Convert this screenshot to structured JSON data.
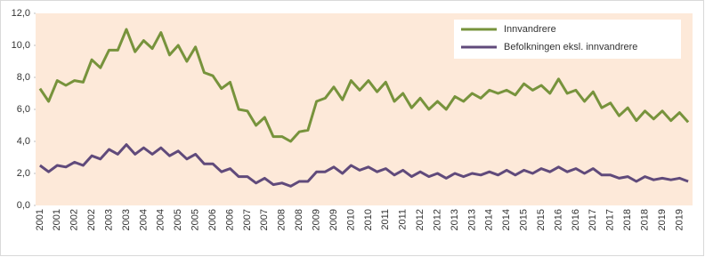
{
  "chart_data": {
    "type": "line",
    "categories": [
      "2001",
      null,
      "2001",
      null,
      "2002",
      null,
      "2002",
      null,
      "2003",
      null,
      "2003",
      null,
      "2004",
      null,
      "2004",
      null,
      "2005",
      null,
      "2005",
      null,
      "2006",
      null,
      "2006",
      null,
      "2007",
      null,
      "2007",
      null,
      "2008",
      null,
      "2008",
      null,
      "2009",
      null,
      "2009",
      null,
      "2010",
      null,
      "2010",
      null,
      "2011",
      null,
      "2011",
      null,
      "2012",
      null,
      "2012",
      null,
      "2013",
      null,
      "2013",
      null,
      "2014",
      null,
      "2014",
      null,
      "2015",
      null,
      "2015",
      null,
      "2016",
      null,
      "2016",
      null,
      "2017",
      null,
      "2017",
      null,
      "2018",
      null,
      "2018",
      null,
      "2019",
      null,
      "2019",
      null
    ],
    "series": [
      {
        "name": "Innvandrere",
        "color": "#77933c",
        "values": [
          7.3,
          6.5,
          7.8,
          7.5,
          7.8,
          7.7,
          9.1,
          8.6,
          9.7,
          9.7,
          11.0,
          9.6,
          10.3,
          9.8,
          10.8,
          9.4,
          10.0,
          9.0,
          9.9,
          8.3,
          8.1,
          7.3,
          7.7,
          6.0,
          5.9,
          5.0,
          5.5,
          4.3,
          4.3,
          4.0,
          4.6,
          4.7,
          6.5,
          6.7,
          7.4,
          6.6,
          7.8,
          7.2,
          7.8,
          7.1,
          7.7,
          6.5,
          7.0,
          6.1,
          6.7,
          6.0,
          6.5,
          6.0,
          6.8,
          6.5,
          7.0,
          6.7,
          7.2,
          7.0,
          7.2,
          6.9,
          7.6,
          7.2,
          7.5,
          7.0,
          7.9,
          7.0,
          7.2,
          6.5,
          7.1,
          6.1,
          6.4,
          5.6,
          6.1,
          5.3,
          5.9,
          5.4,
          5.9,
          5.3,
          5.8,
          5.2
        ]
      },
      {
        "name": "Befolkningen eksl. innvandrere",
        "color": "#604a7b",
        "values": [
          2.5,
          2.1,
          2.5,
          2.4,
          2.7,
          2.5,
          3.1,
          2.9,
          3.5,
          3.2,
          3.8,
          3.2,
          3.6,
          3.2,
          3.6,
          3.1,
          3.4,
          2.9,
          3.2,
          2.6,
          2.6,
          2.1,
          2.3,
          1.8,
          1.8,
          1.4,
          1.7,
          1.3,
          1.4,
          1.2,
          1.5,
          1.5,
          2.1,
          2.1,
          2.4,
          2.0,
          2.5,
          2.2,
          2.4,
          2.1,
          2.3,
          1.9,
          2.2,
          1.8,
          2.1,
          1.8,
          2.0,
          1.7,
          2.0,
          1.8,
          2.0,
          1.9,
          2.1,
          1.9,
          2.2,
          1.9,
          2.2,
          2.0,
          2.3,
          2.1,
          2.4,
          2.1,
          2.3,
          2.0,
          2.3,
          1.9,
          1.9,
          1.7,
          1.8,
          1.5,
          1.8,
          1.6,
          1.7,
          1.6,
          1.7,
          1.5
        ]
      }
    ],
    "ylim": [
      0,
      12
    ],
    "yticks": [
      {
        "value": 0,
        "label": "0,0"
      },
      {
        "value": 2,
        "label": "2,0"
      },
      {
        "value": 4,
        "label": "4,0"
      },
      {
        "value": 6,
        "label": "6,0"
      },
      {
        "value": 8,
        "label": "8,0"
      },
      {
        "value": 10,
        "label": "10,0"
      },
      {
        "value": 12,
        "label": "12,0"
      }
    ],
    "background": "#fde9d9",
    "legend": "top-right"
  }
}
